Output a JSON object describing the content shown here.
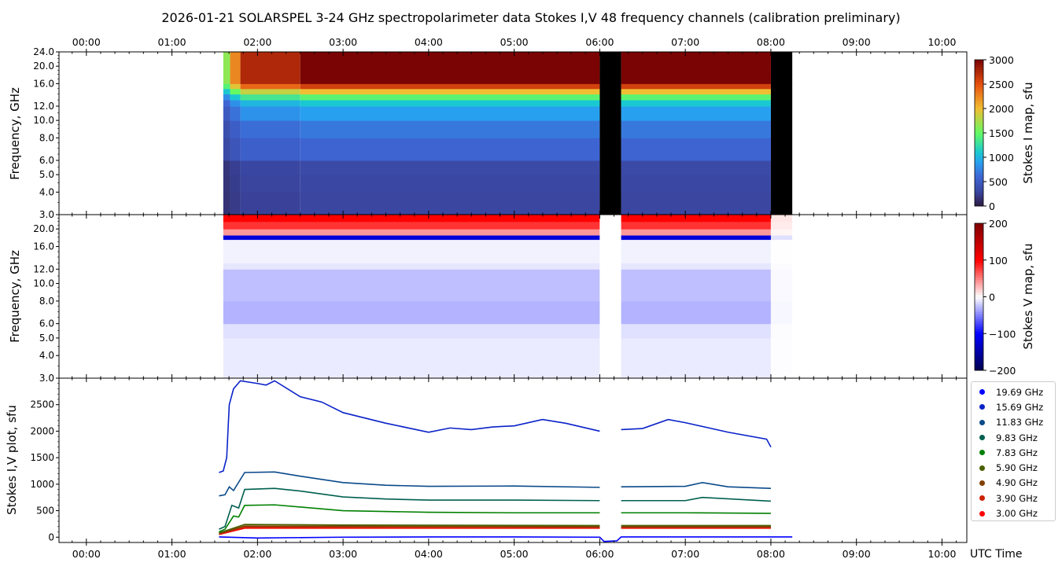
{
  "title": "2026-01-21  SOLARSPEL  3-24 GHz spectropolarimeter data   Stokes I,V   48 frequency channels   (calibration preliminary)",
  "x_axis_label": "UTC Time",
  "chart_data": [
    {
      "type": "heatmap",
      "name": "Stokes I map",
      "ylabel": "Frequency, GHz",
      "colorbar_label": "Stokes I map, sfu",
      "colorbar_ticks": [
        "0",
        "500",
        "1000",
        "1500",
        "2000",
        "2500",
        "3000"
      ],
      "clim": [
        0,
        3000
      ],
      "yscale": "log",
      "ylim": [
        3,
        24
      ],
      "ytick_labels": [
        "3.0",
        "4.0",
        "5.0",
        "6.0",
        "8.0",
        "10.0",
        "12.0",
        "16.0",
        "20.0",
        "24.0"
      ],
      "ytick_values": [
        3,
        4,
        5,
        6,
        8,
        10,
        12,
        16,
        20,
        24
      ],
      "xlim_hours": [
        -0.32,
        10.29
      ],
      "freq_edges": [
        3,
        4,
        5,
        6,
        8,
        10,
        12,
        13,
        14,
        15,
        16,
        17,
        18,
        20,
        22,
        24
      ],
      "spectrum": [
        300,
        320,
        340,
        600,
        700,
        900,
        1100,
        1450,
        2000,
        2600,
        3000,
        3000,
        3000,
        3000,
        3000
      ],
      "segments": [
        {
          "t0": 1.6,
          "t1": 1.68,
          "scale": 0.55
        },
        {
          "t0": 1.68,
          "t1": 1.8,
          "scale": 0.75
        },
        {
          "t0": 1.8,
          "t1": 2.5,
          "scale": 0.92
        },
        {
          "t0": 2.5,
          "t1": 6.0,
          "scale": 1.0
        },
        {
          "t0": 6.0,
          "t1": 6.25,
          "scale": 0
        },
        {
          "t0": 6.25,
          "t1": 8.0,
          "scale": 1.0
        },
        {
          "t0": 8.0,
          "t1": 8.25,
          "scale": 0
        }
      ]
    },
    {
      "type": "heatmap",
      "name": "Stokes V map",
      "ylabel": "Frequency, GHz",
      "colorbar_label": "Stokes V map, sfu",
      "colorbar_ticks": [
        "−200",
        "−100",
        "0",
        "100",
        "200"
      ],
      "clim": [
        -200,
        200
      ],
      "yscale": "log",
      "ylim": [
        3,
        24
      ],
      "ytick_labels": [
        "3.0",
        "4.0",
        "5.0",
        "6.0",
        "8.0",
        "10.0",
        "12.0",
        "16.0",
        "20.0"
      ],
      "ytick_values": [
        3,
        4,
        5,
        6,
        8,
        10,
        12,
        16,
        20
      ],
      "freq_edges": [
        3,
        5,
        6,
        8,
        12,
        13,
        15,
        17.5,
        18.5,
        20,
        22,
        24
      ],
      "spectrum": [
        -8,
        -12,
        -30,
        -25,
        -10,
        -5,
        -5,
        -120,
        40,
        80,
        100
      ],
      "segments": [
        {
          "t0": 1.6,
          "t1": 6.0,
          "scale": 1.0
        },
        {
          "t0": 6.0,
          "t1": 6.25,
          "scale": 0
        },
        {
          "t0": 6.25,
          "t1": 8.0,
          "scale": 1.0
        },
        {
          "t0": 8.0,
          "t1": 8.25,
          "scale": 0.1
        }
      ]
    },
    {
      "type": "line",
      "name": "Stokes I,V plot",
      "ylabel": "Stokes I,V plot, sfu",
      "ylim": [
        -100,
        3000
      ],
      "ytick_values": [
        0,
        500,
        1000,
        1500,
        2000,
        2500
      ],
      "ytick_labels": [
        "0",
        "500",
        "1000",
        "1500",
        "2000",
        "2500"
      ],
      "xtick_labels": [
        "00:00",
        "01:00",
        "02:00",
        "03:00",
        "04:00",
        "05:00",
        "06:00",
        "07:00",
        "08:00",
        "09:00",
        "10:00"
      ],
      "series": [
        {
          "name": "19.69 GHz",
          "color": "#0000ff",
          "points": [
            [
              1.55,
              5
            ],
            [
              2.0,
              -15
            ],
            [
              3.0,
              0
            ],
            [
              4.0,
              5
            ],
            [
              5.0,
              5
            ],
            [
              6.0,
              0
            ],
            [
              6.05,
              -80
            ],
            [
              6.2,
              -70
            ],
            [
              6.25,
              5
            ],
            [
              7.0,
              5
            ],
            [
              8.0,
              5
            ],
            [
              8.25,
              5
            ]
          ]
        },
        {
          "name": "15.69 GHz",
          "color": "#0a22c8",
          "points": [
            [
              1.55,
              1220
            ],
            [
              1.6,
              1250
            ],
            [
              1.64,
              1500
            ],
            [
              1.67,
              2500
            ],
            [
              1.72,
              2800
            ],
            [
              1.8,
              2950
            ],
            [
              2.0,
              2900
            ],
            [
              2.1,
              2870
            ],
            [
              2.2,
              2950
            ],
            [
              2.5,
              2650
            ],
            [
              2.75,
              2550
            ],
            [
              3.0,
              2350
            ],
            [
              3.5,
              2150
            ],
            [
              4.0,
              1980
            ],
            [
              4.25,
              2060
            ],
            [
              4.5,
              2030
            ],
            [
              4.75,
              2080
            ],
            [
              5.0,
              2100
            ],
            [
              5.33,
              2220
            ],
            [
              5.6,
              2150
            ],
            [
              6.0,
              2000
            ],
            null,
            [
              6.25,
              2030
            ],
            [
              6.5,
              2050
            ],
            [
              6.8,
              2220
            ],
            [
              7.0,
              2160
            ],
            [
              7.5,
              1980
            ],
            [
              7.95,
              1850
            ],
            [
              8.0,
              1700
            ]
          ]
        },
        {
          "name": "11.83 GHz",
          "color": "#0a4a8a",
          "points": [
            [
              1.55,
              780
            ],
            [
              1.62,
              800
            ],
            [
              1.67,
              950
            ],
            [
              1.72,
              880
            ],
            [
              1.85,
              1220
            ],
            [
              2.2,
              1230
            ],
            [
              2.5,
              1150
            ],
            [
              3.0,
              1030
            ],
            [
              3.5,
              980
            ],
            [
              4.0,
              960
            ],
            [
              5.0,
              965
            ],
            [
              6.0,
              940
            ],
            null,
            [
              6.25,
              950
            ],
            [
              7.0,
              960
            ],
            [
              7.2,
              1030
            ],
            [
              7.5,
              950
            ],
            [
              8.0,
              920
            ]
          ]
        },
        {
          "name": "9.83 GHz",
          "color": "#006050",
          "points": [
            [
              1.55,
              150
            ],
            [
              1.62,
              200
            ],
            [
              1.7,
              600
            ],
            [
              1.78,
              550
            ],
            [
              1.85,
              900
            ],
            [
              2.2,
              920
            ],
            [
              2.5,
              870
            ],
            [
              3.0,
              760
            ],
            [
              3.5,
              720
            ],
            [
              4.0,
              700
            ],
            [
              5.0,
              700
            ],
            [
              6.0,
              690
            ],
            null,
            [
              6.25,
              690
            ],
            [
              7.0,
              690
            ],
            [
              7.2,
              750
            ],
            [
              8.0,
              680
            ]
          ]
        },
        {
          "name": "7.83 GHz",
          "color": "#008000",
          "points": [
            [
              1.55,
              100
            ],
            [
              1.62,
              150
            ],
            [
              1.72,
              400
            ],
            [
              1.78,
              380
            ],
            [
              1.85,
              600
            ],
            [
              2.2,
              610
            ],
            [
              3.0,
              500
            ],
            [
              4.0,
              470
            ],
            [
              5.0,
              460
            ],
            [
              6.0,
              460
            ],
            null,
            [
              6.25,
              460
            ],
            [
              7.0,
              460
            ],
            [
              8.0,
              450
            ]
          ]
        },
        {
          "name": "5.90 GHz",
          "color": "#4a6000",
          "points": [
            [
              1.55,
              80
            ],
            [
              1.85,
              240
            ],
            [
              3.0,
              230
            ],
            [
              6.0,
              220
            ],
            null,
            [
              6.25,
              220
            ],
            [
              8.0,
              220
            ]
          ]
        },
        {
          "name": "4.90 GHz",
          "color": "#804000",
          "points": [
            [
              1.55,
              70
            ],
            [
              1.85,
              210
            ],
            [
              6.0,
              200
            ],
            null,
            [
              6.25,
              200
            ],
            [
              8.0,
              200
            ]
          ]
        },
        {
          "name": "3.90 GHz",
          "color": "#cc2200",
          "points": [
            [
              1.55,
              60
            ],
            [
              1.85,
              185
            ],
            [
              6.0,
              180
            ],
            null,
            [
              6.25,
              180
            ],
            [
              8.0,
              180
            ]
          ]
        },
        {
          "name": "3.00 GHz",
          "color": "#ff0000",
          "points": [
            [
              1.55,
              50
            ],
            [
              1.85,
              170
            ],
            [
              6.0,
              170
            ],
            null,
            [
              6.25,
              170
            ],
            [
              8.0,
              170
            ]
          ]
        }
      ]
    }
  ]
}
